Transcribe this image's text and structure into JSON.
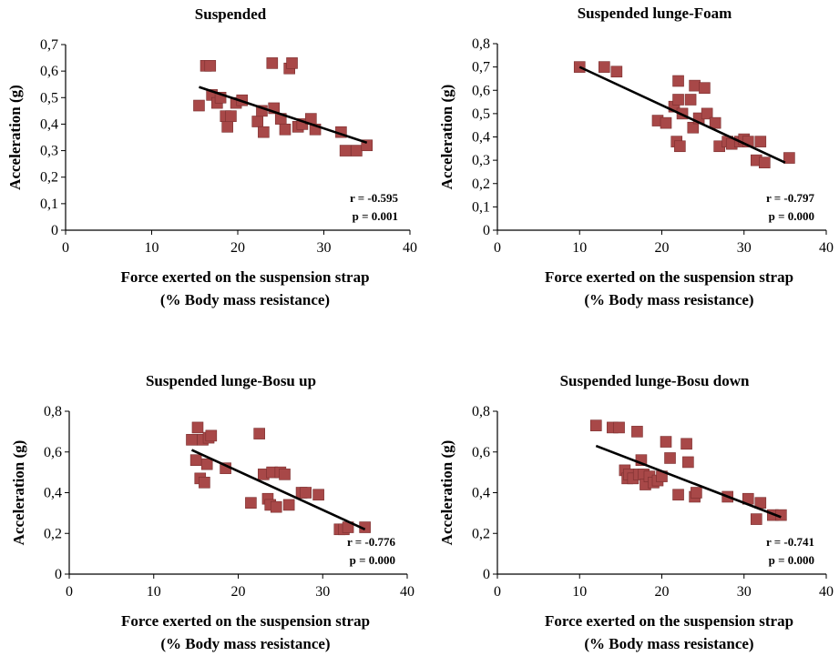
{
  "chart_data": [
    {
      "type": "scatter",
      "title": "Suspended",
      "ylabel": "Acceleration (g)",
      "xlabel_line1": "Force exerted on the suspension strap",
      "xlabel_line2": "(% Body mass resistance)",
      "xlim": [
        0,
        40
      ],
      "ylim": [
        0,
        0.7
      ],
      "xticks": [
        0,
        10,
        20,
        30,
        40
      ],
      "xtick_labels": [
        "0",
        "10",
        "20",
        "30",
        "40"
      ],
      "yticks": [
        0,
        0.1,
        0.2,
        0.3,
        0.4,
        0.5,
        0.6,
        0.7
      ],
      "ytick_labels": [
        "0",
        "0,1",
        "0,2",
        "0,3",
        "0,4",
        "0,5",
        "0,6",
        "0,7"
      ],
      "r_label": "r = -0.595",
      "p_label": "p = 0.001",
      "grid": false,
      "marker_color": "#A84848",
      "trendline": {
        "x1": 15.5,
        "y1": 0.54,
        "x2": 35,
        "y2": 0.33
      },
      "points": [
        [
          15.5,
          0.47
        ],
        [
          16.3,
          0.62
        ],
        [
          16.8,
          0.62
        ],
        [
          17.0,
          0.51
        ],
        [
          17.6,
          0.48
        ],
        [
          18.0,
          0.5
        ],
        [
          18.6,
          0.43
        ],
        [
          18.8,
          0.39
        ],
        [
          19.2,
          0.43
        ],
        [
          19.8,
          0.48
        ],
        [
          20.5,
          0.49
        ],
        [
          22.3,
          0.41
        ],
        [
          22.8,
          0.45
        ],
        [
          23.0,
          0.37
        ],
        [
          24.0,
          0.63
        ],
        [
          24.2,
          0.46
        ],
        [
          25.0,
          0.42
        ],
        [
          25.5,
          0.38
        ],
        [
          26.0,
          0.61
        ],
        [
          26.3,
          0.63
        ],
        [
          27.0,
          0.39
        ],
        [
          27.5,
          0.4
        ],
        [
          28.5,
          0.42
        ],
        [
          29.0,
          0.38
        ],
        [
          32.0,
          0.37
        ],
        [
          32.5,
          0.3
        ],
        [
          33.8,
          0.3
        ],
        [
          35.0,
          0.32
        ]
      ]
    },
    {
      "type": "scatter",
      "title": "Suspended lunge-Foam",
      "ylabel": "Acceleration (g)",
      "xlabel_line1": "Force exerted on the suspension strap",
      "xlabel_line2": "(% Body mass resistance)",
      "xlim": [
        0,
        40
      ],
      "ylim": [
        0,
        0.8
      ],
      "xticks": [
        0,
        10,
        20,
        30,
        40
      ],
      "xtick_labels": [
        "0",
        "10",
        "20",
        "30",
        "40"
      ],
      "yticks": [
        0,
        0.1,
        0.2,
        0.3,
        0.4,
        0.5,
        0.6,
        0.7,
        0.8
      ],
      "ytick_labels": [
        "0",
        "0,1",
        "0,2",
        "0,3",
        "0,4",
        "0,5",
        "0,6",
        "0,7",
        "0,8"
      ],
      "r_label": "r = -0.797",
      "p_label": "p = 0.000",
      "grid": false,
      "marker_color": "#A84848",
      "trendline": {
        "x1": 10,
        "y1": 0.7,
        "x2": 35,
        "y2": 0.29
      },
      "points": [
        [
          10.0,
          0.7
        ],
        [
          13.0,
          0.7
        ],
        [
          14.5,
          0.68
        ],
        [
          19.5,
          0.47
        ],
        [
          20.5,
          0.46
        ],
        [
          21.5,
          0.53
        ],
        [
          21.8,
          0.38
        ],
        [
          22.0,
          0.56
        ],
        [
          22.0,
          0.64
        ],
        [
          22.2,
          0.36
        ],
        [
          22.5,
          0.5
        ],
        [
          23.5,
          0.56
        ],
        [
          23.8,
          0.44
        ],
        [
          24.0,
          0.62
        ],
        [
          24.5,
          0.48
        ],
        [
          25.2,
          0.61
        ],
        [
          25.5,
          0.5
        ],
        [
          26.5,
          0.46
        ],
        [
          27.0,
          0.36
        ],
        [
          28.0,
          0.38
        ],
        [
          28.5,
          0.37
        ],
        [
          29.5,
          0.38
        ],
        [
          30.0,
          0.39
        ],
        [
          30.5,
          0.38
        ],
        [
          31.5,
          0.3
        ],
        [
          32.0,
          0.38
        ],
        [
          32.5,
          0.29
        ],
        [
          35.5,
          0.31
        ]
      ]
    },
    {
      "type": "scatter",
      "title": "Suspended lunge-Bosu up",
      "ylabel": "Acceleration (g)",
      "xlabel_line1": "Force exerted on the suspension strap",
      "xlabel_line2": "(% Body mass resistance)",
      "xlim": [
        0,
        40
      ],
      "ylim": [
        0,
        0.8
      ],
      "xticks": [
        0,
        10,
        20,
        30,
        40
      ],
      "xtick_labels": [
        "0",
        "10",
        "20",
        "30",
        "40"
      ],
      "yticks": [
        0,
        0.2,
        0.4,
        0.6,
        0.8
      ],
      "ytick_labels": [
        "0",
        "0,2",
        "0,4",
        "0,6",
        "0,8"
      ],
      "r_label": "r = -0.776",
      "p_label": "p = 0.000",
      "grid": false,
      "marker_color": "#A84848",
      "trendline": {
        "x1": 14.5,
        "y1": 0.61,
        "x2": 35,
        "y2": 0.22
      },
      "points": [
        [
          14.5,
          0.66
        ],
        [
          15.0,
          0.56
        ],
        [
          15.2,
          0.72
        ],
        [
          15.5,
          0.47
        ],
        [
          15.8,
          0.66
        ],
        [
          16.0,
          0.45
        ],
        [
          16.3,
          0.54
        ],
        [
          16.5,
          0.67
        ],
        [
          16.8,
          0.68
        ],
        [
          18.5,
          0.52
        ],
        [
          21.5,
          0.35
        ],
        [
          22.5,
          0.69
        ],
        [
          23.0,
          0.49
        ],
        [
          23.5,
          0.37
        ],
        [
          23.8,
          0.34
        ],
        [
          24.0,
          0.5
        ],
        [
          24.5,
          0.33
        ],
        [
          25.0,
          0.5
        ],
        [
          25.5,
          0.49
        ],
        [
          26.0,
          0.34
        ],
        [
          27.5,
          0.4
        ],
        [
          28.0,
          0.4
        ],
        [
          29.5,
          0.39
        ],
        [
          32.0,
          0.22
        ],
        [
          32.5,
          0.22
        ],
        [
          33.0,
          0.23
        ],
        [
          35.0,
          0.23
        ]
      ]
    },
    {
      "type": "scatter",
      "title": "Suspended lunge-Bosu down",
      "ylabel": "Acceleration (g)",
      "xlabel_line1": "Force exerted on the suspension strap",
      "xlabel_line2": "(% Body mass resistance)",
      "xlim": [
        0,
        40
      ],
      "ylim": [
        0,
        0.8
      ],
      "xticks": [
        0,
        10,
        20,
        30,
        40
      ],
      "xtick_labels": [
        "0",
        "10",
        "20",
        "30",
        "40"
      ],
      "yticks": [
        0,
        0.2,
        0.4,
        0.6,
        0.8
      ],
      "ytick_labels": [
        "0",
        "0,2",
        "0,4",
        "0,6",
        "0,8"
      ],
      "r_label": "r = -0.741",
      "p_label": "p = 0.000",
      "grid": false,
      "marker_color": "#A84848",
      "trendline": {
        "x1": 12,
        "y1": 0.63,
        "x2": 34.5,
        "y2": 0.28
      },
      "points": [
        [
          12.0,
          0.73
        ],
        [
          14.0,
          0.72
        ],
        [
          14.8,
          0.72
        ],
        [
          15.5,
          0.51
        ],
        [
          15.8,
          0.47
        ],
        [
          16.0,
          0.49
        ],
        [
          16.5,
          0.47
        ],
        [
          17.0,
          0.7
        ],
        [
          17.2,
          0.49
        ],
        [
          17.5,
          0.56
        ],
        [
          17.8,
          0.49
        ],
        [
          18.0,
          0.44
        ],
        [
          18.5,
          0.48
        ],
        [
          19.0,
          0.45
        ],
        [
          19.5,
          0.46
        ],
        [
          20.0,
          0.48
        ],
        [
          20.5,
          0.65
        ],
        [
          21.0,
          0.57
        ],
        [
          22.0,
          0.39
        ],
        [
          23.0,
          0.64
        ],
        [
          23.2,
          0.55
        ],
        [
          24.0,
          0.38
        ],
        [
          24.2,
          0.4
        ],
        [
          28.0,
          0.38
        ],
        [
          30.5,
          0.37
        ],
        [
          31.5,
          0.27
        ],
        [
          32.0,
          0.35
        ],
        [
          33.5,
          0.29
        ],
        [
          34.5,
          0.29
        ]
      ]
    }
  ]
}
